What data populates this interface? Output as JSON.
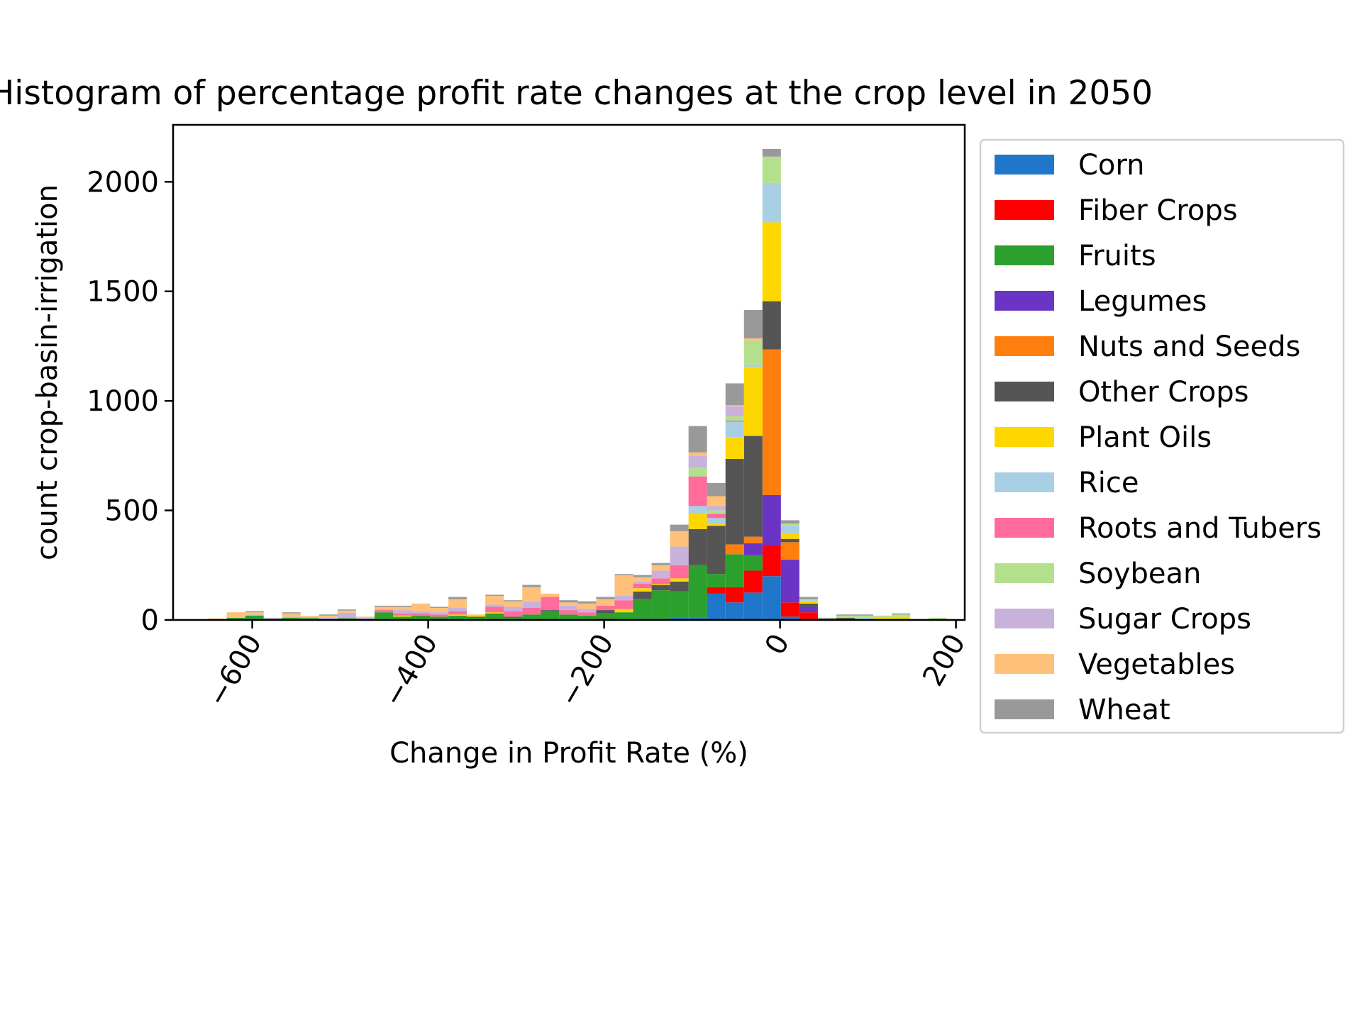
{
  "chart_data": {
    "type": "bar",
    "stacked": true,
    "title": "Histogram of percentage profit rate changes at the crop level in 2050",
    "xlabel": "Change in Profit Rate (%)",
    "ylabel": "count crop-basin-irrigation",
    "xlim": [
      -690,
      210
    ],
    "ylim": [
      0,
      2260
    ],
    "bin_width": 21,
    "x": [
      -650,
      -629,
      -608,
      -587,
      -566,
      -545,
      -524,
      -503,
      -482,
      -461,
      -440,
      -419,
      -398,
      -377,
      -356,
      -335,
      -314,
      -293,
      -272,
      -251,
      -230,
      -209,
      -188,
      -167,
      -146,
      -125,
      -104,
      -83,
      -62,
      -41,
      -20,
      1,
      22,
      43,
      64,
      85,
      106,
      127,
      148,
      169
    ],
    "x_ticks": [
      -600,
      -400,
      -200,
      0,
      200
    ],
    "x_tick_labels": [
      "−600",
      "−400",
      "−200",
      "0",
      "200"
    ],
    "y_ticks": [
      0,
      500,
      1000,
      1500,
      2000
    ],
    "y_tick_labels": [
      "0",
      "500",
      "1000",
      "1500",
      "2000"
    ],
    "legend_position": "right, outside plot",
    "series": [
      {
        "name": "Corn",
        "color": "#1f77c9",
        "values": [
          0,
          0,
          0,
          0,
          0,
          0,
          0,
          0,
          0,
          0,
          0,
          0,
          0,
          0,
          0,
          0,
          0,
          0,
          0,
          0,
          0,
          0,
          0,
          5,
          5,
          10,
          10,
          120,
          80,
          125,
          200,
          15,
          0,
          0,
          0,
          0,
          0,
          0,
          0,
          0
        ]
      },
      {
        "name": "Fiber Crops",
        "color": "#ff0000",
        "values": [
          0,
          0,
          0,
          0,
          0,
          0,
          0,
          0,
          0,
          0,
          0,
          0,
          0,
          0,
          0,
          5,
          0,
          0,
          0,
          0,
          0,
          5,
          0,
          0,
          0,
          0,
          0,
          30,
          70,
          100,
          140,
          65,
          35,
          0,
          0,
          0,
          0,
          0,
          0,
          0
        ]
      },
      {
        "name": "Fruits",
        "color": "#2ca02c",
        "values": [
          3,
          10,
          20,
          5,
          10,
          8,
          5,
          8,
          5,
          35,
          15,
          20,
          15,
          20,
          10,
          25,
          10,
          25,
          40,
          25,
          20,
          25,
          35,
          90,
          130,
          120,
          240,
          60,
          150,
          70,
          0,
          0,
          0,
          0,
          5,
          5,
          5,
          5,
          0,
          0
        ]
      },
      {
        "name": "Legumes",
        "color": "#6a34c4",
        "values": [
          0,
          0,
          0,
          0,
          0,
          0,
          0,
          0,
          0,
          0,
          0,
          0,
          0,
          0,
          0,
          0,
          0,
          0,
          0,
          0,
          0,
          0,
          0,
          0,
          0,
          0,
          0,
          0,
          0,
          55,
          230,
          195,
          25,
          0,
          0,
          0,
          0,
          0,
          0,
          0
        ]
      },
      {
        "name": "Nuts and Seeds",
        "color": "#ff7f0e",
        "values": [
          0,
          0,
          0,
          0,
          0,
          0,
          0,
          0,
          0,
          0,
          0,
          0,
          0,
          0,
          0,
          0,
          0,
          0,
          0,
          0,
          0,
          0,
          0,
          0,
          0,
          0,
          0,
          0,
          45,
          30,
          665,
          80,
          0,
          0,
          0,
          0,
          0,
          0,
          0,
          0
        ]
      },
      {
        "name": "Other Crops",
        "color": "#555555",
        "values": [
          0,
          0,
          0,
          0,
          0,
          0,
          0,
          0,
          0,
          0,
          0,
          0,
          0,
          0,
          5,
          0,
          5,
          0,
          5,
          0,
          0,
          15,
          0,
          35,
          25,
          45,
          165,
          220,
          390,
          460,
          220,
          15,
          15,
          0,
          5,
          0,
          0,
          0,
          0,
          0
        ]
      },
      {
        "name": "Plant Oils",
        "color": "#ffd700",
        "values": [
          0,
          0,
          0,
          0,
          0,
          0,
          0,
          0,
          0,
          0,
          5,
          0,
          0,
          5,
          5,
          5,
          0,
          0,
          0,
          0,
          0,
          0,
          15,
          15,
          5,
          15,
          70,
          10,
          100,
          315,
          360,
          25,
          10,
          0,
          0,
          0,
          5,
          10,
          0,
          0
        ]
      },
      {
        "name": "Rice",
        "color": "#a8cfe3",
        "values": [
          0,
          0,
          0,
          0,
          0,
          0,
          0,
          0,
          0,
          0,
          0,
          0,
          0,
          0,
          0,
          0,
          0,
          0,
          0,
          0,
          0,
          0,
          0,
          0,
          0,
          0,
          35,
          25,
          70,
          10,
          180,
          35,
          5,
          0,
          0,
          5,
          0,
          0,
          0,
          0
        ]
      },
      {
        "name": "Roots and Tubers",
        "color": "#ff6b9a",
        "values": [
          0,
          0,
          0,
          0,
          0,
          0,
          0,
          0,
          0,
          10,
          10,
          10,
          10,
          15,
          0,
          25,
          25,
          30,
          60,
          20,
          15,
          20,
          40,
          20,
          25,
          60,
          135,
          20,
          5,
          0,
          0,
          0,
          0,
          0,
          0,
          0,
          0,
          0,
          0,
          0
        ]
      },
      {
        "name": "Soybean",
        "color": "#b3e08d",
        "values": [
          0,
          0,
          0,
          0,
          0,
          0,
          0,
          0,
          0,
          0,
          0,
          0,
          0,
          0,
          0,
          0,
          0,
          0,
          0,
          0,
          0,
          0,
          0,
          0,
          0,
          0,
          40,
          15,
          20,
          110,
          120,
          10,
          5,
          5,
          10,
          10,
          10,
          10,
          5,
          10
        ]
      },
      {
        "name": "Sugar Crops",
        "color": "#c8b2dc",
        "values": [
          0,
          0,
          5,
          5,
          5,
          5,
          5,
          25,
          5,
          5,
          15,
          10,
          10,
          15,
          0,
          10,
          20,
          30,
          0,
          20,
          15,
          0,
          20,
          10,
          35,
          85,
          55,
          20,
          45,
          0,
          0,
          0,
          0,
          0,
          0,
          0,
          0,
          0,
          0,
          0
        ]
      },
      {
        "name": "Vegetables",
        "color": "#ffc079",
        "values": [
          4,
          25,
          10,
          0,
          15,
          5,
          10,
          10,
          5,
          10,
          15,
          35,
          20,
          40,
          5,
          40,
          25,
          65,
          15,
          15,
          25,
          30,
          95,
          20,
          25,
          70,
          15,
          45,
          5,
          10,
          0,
          0,
          0,
          0,
          0,
          0,
          0,
          0,
          0,
          0
        ]
      },
      {
        "name": "Wheat",
        "color": "#999999",
        "values": [
          0,
          0,
          5,
          0,
          5,
          0,
          5,
          5,
          0,
          5,
          5,
          0,
          5,
          10,
          0,
          5,
          5,
          10,
          0,
          10,
          10,
          10,
          5,
          10,
          10,
          30,
          120,
          60,
          100,
          130,
          35,
          15,
          10,
          5,
          5,
          5,
          0,
          5,
          0,
          0
        ]
      }
    ]
  }
}
